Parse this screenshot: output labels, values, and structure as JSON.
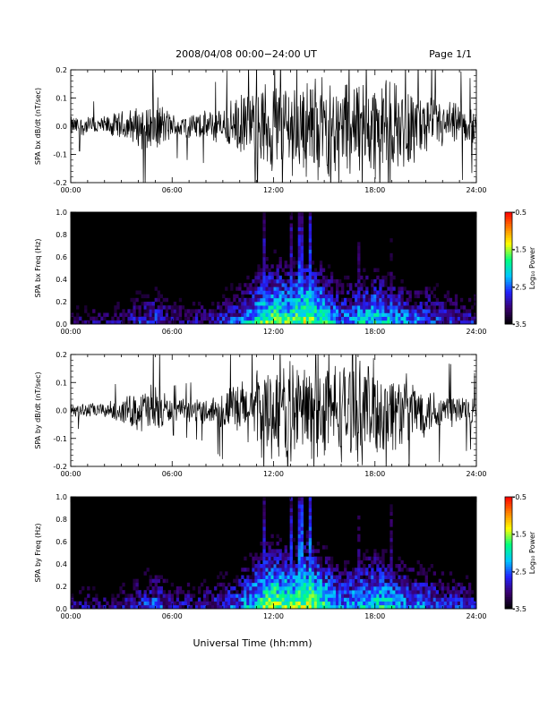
{
  "header": {
    "title": "2008/04/08   00:00−24:00 UT",
    "page": "Page 1/1"
  },
  "xlabel": "Universal Time (hh:mm)",
  "colorbar": {
    "label": "Log₁₀ Power",
    "ticks": [
      "-0.5",
      "-1.5",
      "-2.5",
      "-3.5"
    ],
    "range": [
      -3.5,
      -0.5
    ],
    "colormap": [
      "#000000",
      "#3a0070",
      "#2222ff",
      "#00c8ff",
      "#00ff7f",
      "#ffff00",
      "#ff8000",
      "#ff0000"
    ]
  },
  "chart_data": [
    {
      "type": "line",
      "series_label": "bx",
      "title": "",
      "ylabel": "SPA bx dB/dt (nT/sec)",
      "xlabel": "",
      "xlim": [
        "00:00",
        "24:00"
      ],
      "ylim": [
        -0.2,
        0.2
      ],
      "x_ticks": [
        "00:00",
        "06:00",
        "12:00",
        "18:00",
        "24:00"
      ],
      "y_ticks": [
        "0.2",
        "0.1",
        "0.0",
        "-0.1",
        "-0.2"
      ],
      "amplitude_envelope": {
        "x_hours": [
          0,
          2,
          3,
          4,
          5,
          6,
          8,
          9,
          10,
          11,
          12,
          13,
          14,
          15,
          16,
          17,
          18,
          19,
          20,
          21,
          22,
          23,
          24
        ],
        "amplitude": [
          0.04,
          0.04,
          0.06,
          0.08,
          0.12,
          0.05,
          0.06,
          0.08,
          0.12,
          0.16,
          0.2,
          0.2,
          0.2,
          0.2,
          0.2,
          0.2,
          0.2,
          0.18,
          0.16,
          0.12,
          0.1,
          0.09,
          0.07
        ]
      }
    },
    {
      "type": "heatmap",
      "series_label": "bx",
      "title": "",
      "ylabel": "SPA bx Freq (Hz)",
      "xlim": [
        "00:00",
        "24:00"
      ],
      "ylim": [
        0.0,
        1.0
      ],
      "x_ticks": [
        "00:00",
        "06:00",
        "12:00",
        "18:00",
        "24:00"
      ],
      "y_ticks": [
        "1.0",
        "0.8",
        "0.6",
        "0.4",
        "0.2",
        "0.0"
      ],
      "value": "Log10 Power",
      "zlim": [
        -3.5,
        -0.5
      ],
      "activity_profile": {
        "x_hours": [
          0,
          3,
          4,
          5,
          6,
          8,
          10,
          11,
          12,
          13,
          14,
          15,
          16,
          17,
          18,
          19,
          20,
          21,
          22,
          24
        ],
        "log_power": [
          -3.2,
          -3.1,
          -2.8,
          -2.6,
          -3.0,
          -3.0,
          -2.5,
          -2.0,
          -1.6,
          -1.8,
          -1.5,
          -1.9,
          -2.4,
          -2.2,
          -2.0,
          -2.2,
          -2.4,
          -2.5,
          -2.7,
          -2.9
        ]
      },
      "vertical_streaks_hours": [
        3.3,
        4.5,
        11.5,
        13.1,
        13.6,
        14.2,
        17.1,
        19.0
      ]
    },
    {
      "type": "line",
      "series_label": "by",
      "title": "",
      "ylabel": "SPA by dB/dt (nT/sec)",
      "xlabel": "",
      "xlim": [
        "00:00",
        "24:00"
      ],
      "ylim": [
        -0.2,
        0.2
      ],
      "x_ticks": [
        "00:00",
        "06:00",
        "12:00",
        "18:00",
        "24:00"
      ],
      "y_ticks": [
        "0.2",
        "0.1",
        "0.0",
        "-0.1",
        "-0.2"
      ],
      "amplitude_envelope": {
        "x_hours": [
          0,
          2,
          3,
          4,
          5,
          6,
          8,
          9,
          10,
          11,
          12,
          13,
          14,
          15,
          16,
          17,
          18,
          19,
          20,
          21,
          22,
          23,
          24
        ],
        "amplitude": [
          0.03,
          0.03,
          0.05,
          0.08,
          0.12,
          0.04,
          0.05,
          0.08,
          0.12,
          0.16,
          0.2,
          0.2,
          0.2,
          0.2,
          0.2,
          0.2,
          0.2,
          0.17,
          0.14,
          0.1,
          0.08,
          0.07,
          0.06
        ]
      }
    },
    {
      "type": "heatmap",
      "series_label": "by",
      "title": "",
      "ylabel": "SPA by Freq (Hz)",
      "xlim": [
        "00:00",
        "24:00"
      ],
      "ylim": [
        0.0,
        1.0
      ],
      "x_ticks": [
        "00:00",
        "06:00",
        "12:00",
        "18:00",
        "24:00"
      ],
      "y_ticks": [
        "1.0",
        "0.8",
        "0.6",
        "0.4",
        "0.2",
        "0.0"
      ],
      "value": "Log10 Power",
      "zlim": [
        -3.5,
        -0.5
      ],
      "activity_profile": {
        "x_hours": [
          0,
          3,
          4,
          5,
          6,
          8,
          10,
          11,
          12,
          13,
          14,
          15,
          16,
          17,
          18,
          19,
          20,
          21,
          22,
          24
        ],
        "log_power": [
          -3.1,
          -3.0,
          -2.7,
          -2.5,
          -2.9,
          -2.9,
          -2.4,
          -1.9,
          -1.5,
          -1.7,
          -1.4,
          -1.8,
          -2.3,
          -2.1,
          -1.9,
          -2.1,
          -2.3,
          -2.4,
          -2.6,
          -2.8
        ]
      },
      "vertical_streaks_hours": [
        3.3,
        4.5,
        11.5,
        13.1,
        13.6,
        14.2,
        17.1,
        19.0
      ]
    }
  ]
}
